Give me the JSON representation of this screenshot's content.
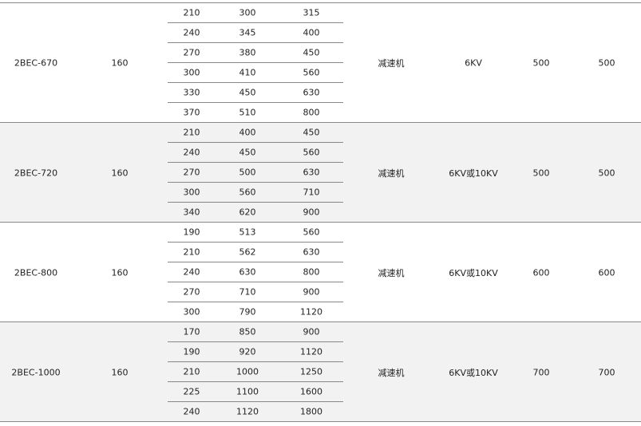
{
  "groups": [
    {
      "model": "2BEC-670",
      "col2": "160",
      "drive": "减速机",
      "voltage": "6KV",
      "col7": "500",
      "col8": "500",
      "shaded": false,
      "rows": [
        [
          "210",
          "300",
          "315"
        ],
        [
          "240",
          "345",
          "400"
        ],
        [
          "270",
          "380",
          "450"
        ],
        [
          "300",
          "410",
          "560"
        ],
        [
          "330",
          "450",
          "630"
        ],
        [
          "370",
          "510",
          "800"
        ]
      ]
    },
    {
      "model": "2BEC-720",
      "col2": "160",
      "drive": "减速机",
      "voltage": "6KV或10KV",
      "col7": "500",
      "col8": "500",
      "shaded": true,
      "rows": [
        [
          "210",
          "400",
          "450"
        ],
        [
          "240",
          "450",
          "560"
        ],
        [
          "270",
          "500",
          "630"
        ],
        [
          "300",
          "560",
          "710"
        ],
        [
          "340",
          "620",
          "900"
        ]
      ]
    },
    {
      "model": "2BEC-800",
      "col2": "160",
      "drive": "减速机",
      "voltage": "6KV或10KV",
      "col7": "600",
      "col8": "600",
      "shaded": false,
      "rows": [
        [
          "190",
          "513",
          "560"
        ],
        [
          "210",
          "562",
          "630"
        ],
        [
          "240",
          "630",
          "800"
        ],
        [
          "270",
          "710",
          "900"
        ],
        [
          "300",
          "790",
          "1120"
        ]
      ]
    },
    {
      "model": "2BEC-1000",
      "col2": "160",
      "drive": "减速机",
      "voltage": "6KV或10KV",
      "col7": "700",
      "col8": "700",
      "shaded": true,
      "rows": [
        [
          "170",
          "850",
          "900"
        ],
        [
          "190",
          "920",
          "1120"
        ],
        [
          "210",
          "1000",
          "1250"
        ],
        [
          "225",
          "1100",
          "1600"
        ],
        [
          "240",
          "1120",
          "1800"
        ]
      ]
    }
  ]
}
